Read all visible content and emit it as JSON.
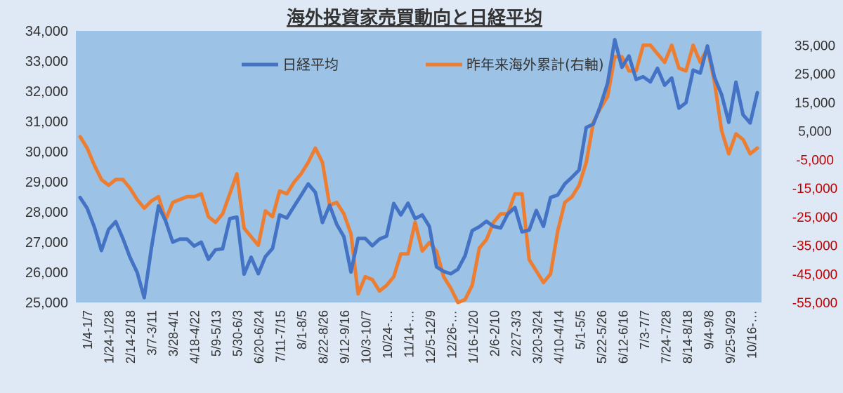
{
  "chart_data": {
    "type": "line",
    "title": "海外投資家売買動向と日経平均",
    "legend": {
      "placement": "top-center"
    },
    "y_left": {
      "min": 25000,
      "max": 34000,
      "ticks": [
        "25,000",
        "26,000",
        "27,000",
        "28,000",
        "29,000",
        "30,000",
        "31,000",
        "32,000",
        "33,000",
        "34,000"
      ]
    },
    "y_right": {
      "min": -55000,
      "max": 40000,
      "ticks": [
        "-55,000",
        "-45,000",
        "-35,000",
        "-25,000",
        "-15,000",
        "-5,000",
        "5,000",
        "15,000",
        "25,000",
        "35,000"
      ]
    },
    "x_labels": [
      "1/4-1/7",
      "1/24-1/28",
      "2/14-2/18",
      "3/7-3/11",
      "3/28-4/1",
      "4/18-4/22",
      "5/9-5/13",
      "5/30-6/3",
      "6/20-6/24",
      "7/11-7/15",
      "8/1-8/5",
      "8/22-8/26",
      "9/12-9/16",
      "10/3-10/7",
      "10/24-…",
      "11/14-…",
      "12/5-12/9",
      "12/26-…",
      "1/16-1/20",
      "2/6-2/10",
      "2/27-3/3",
      "3/20-3/24",
      "4/10-4/14",
      "5/1-5/5",
      "5/22-5/26",
      "6/12-6/16",
      "7/3-7/7",
      "7/24-7/28",
      "8/14-8/18",
      "9/4-9/8",
      "9/25-9/29",
      "10/16-…"
    ],
    "series": [
      {
        "name": "日経平均",
        "axis": "left",
        "color": "#4472c4",
        "values": [
          28480,
          28120,
          27500,
          26720,
          27420,
          27680,
          27120,
          26500,
          26000,
          25160,
          26800,
          28200,
          27700,
          27000,
          27100,
          27100,
          26870,
          27000,
          26430,
          26750,
          26780,
          27780,
          27830,
          25940,
          26500,
          25950,
          26520,
          26790,
          27900,
          27800,
          28180,
          28550,
          28930,
          28650,
          27650,
          28220,
          27590,
          27180,
          26010,
          27120,
          27120,
          26880,
          27100,
          27200,
          28280,
          27900,
          28290,
          27780,
          27900,
          27520,
          26180,
          26030,
          25950,
          26100,
          26550,
          27380,
          27510,
          27690,
          27520,
          27470,
          27930,
          28150,
          27340,
          27400,
          28050,
          27520,
          28480,
          28560,
          28930,
          29150,
          29390,
          30800,
          30910,
          31520,
          32270,
          33710,
          32790,
          33170,
          32390,
          32480,
          32310,
          32760,
          32200,
          32440,
          31440,
          31620,
          32700,
          32600,
          33500,
          32460,
          31880,
          30970,
          32300,
          31220,
          30950,
          31950
        ]
      },
      {
        "name": "昨年来海外累計(右軸)",
        "axis": "right",
        "color": "#ed7d31",
        "values": [
          3000,
          -1000,
          -7000,
          -12000,
          -14000,
          -12000,
          -12000,
          -15000,
          -19000,
          -22000,
          -19500,
          -18000,
          -26000,
          -20000,
          -19000,
          -18000,
          -18000,
          -17000,
          -25000,
          -27000,
          -24000,
          -17000,
          -10000,
          -29000,
          -32000,
          -35000,
          -23000,
          -25000,
          -16000,
          -17000,
          -13000,
          -10000,
          -6000,
          -1000,
          -6000,
          -21000,
          -20000,
          -24000,
          -31000,
          -52000,
          -46000,
          -47000,
          -51000,
          -49000,
          -46000,
          -38000,
          -38000,
          -27000,
          -37000,
          -34000,
          -37000,
          -46000,
          -50000,
          -55000,
          -54000,
          -49000,
          -36000,
          -33000,
          -27000,
          -24000,
          -24000,
          -17000,
          -17000,
          -40000,
          -44000,
          -48000,
          -45000,
          -30000,
          -20000,
          -18000,
          -14000,
          -6000,
          8000,
          13000,
          17000,
          31000,
          31000,
          26000,
          26000,
          35000,
          35000,
          32000,
          29000,
          35000,
          27000,
          26000,
          35000,
          29000,
          34000,
          22000,
          5000,
          -3000,
          4000,
          2000,
          -3000,
          -1000
        ]
      }
    ]
  }
}
